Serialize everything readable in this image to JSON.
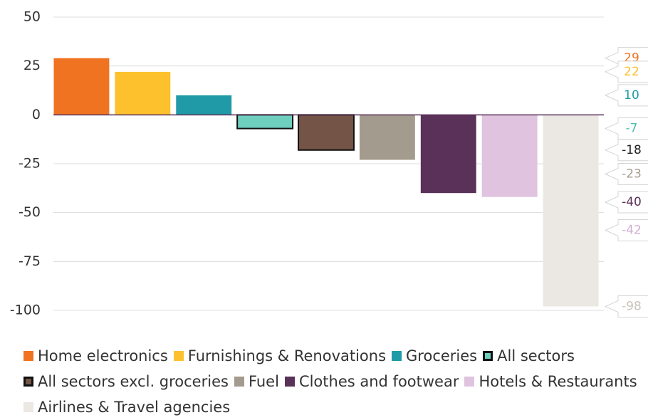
{
  "chart_data": {
    "type": "bar",
    "categories": [
      "Home electronics",
      "Furnishings & Renovations",
      "Groceries",
      "All sectors",
      "All sectors excl. groceries",
      "Fuel",
      "Clothes and footwear",
      "Hotels & Restaurants",
      "Airlines & Travel agencies"
    ],
    "values": [
      29,
      22,
      10,
      -7,
      -18,
      -23,
      -40,
      -42,
      -98
    ],
    "colors": [
      "#f07322",
      "#fcc12d",
      "#1f9aa6",
      "#6fcfbe",
      "#735446",
      "#a39b8d",
      "#5a3159",
      "#dfc3df",
      "#ebe8e3"
    ],
    "edgecolors": [
      null,
      null,
      null,
      "#111111",
      "#111111",
      null,
      null,
      null,
      null
    ],
    "ylim": [
      -100,
      50
    ],
    "yticks": [
      50,
      25,
      0,
      -25,
      -50,
      -75,
      -100
    ],
    "grid": true
  }
}
